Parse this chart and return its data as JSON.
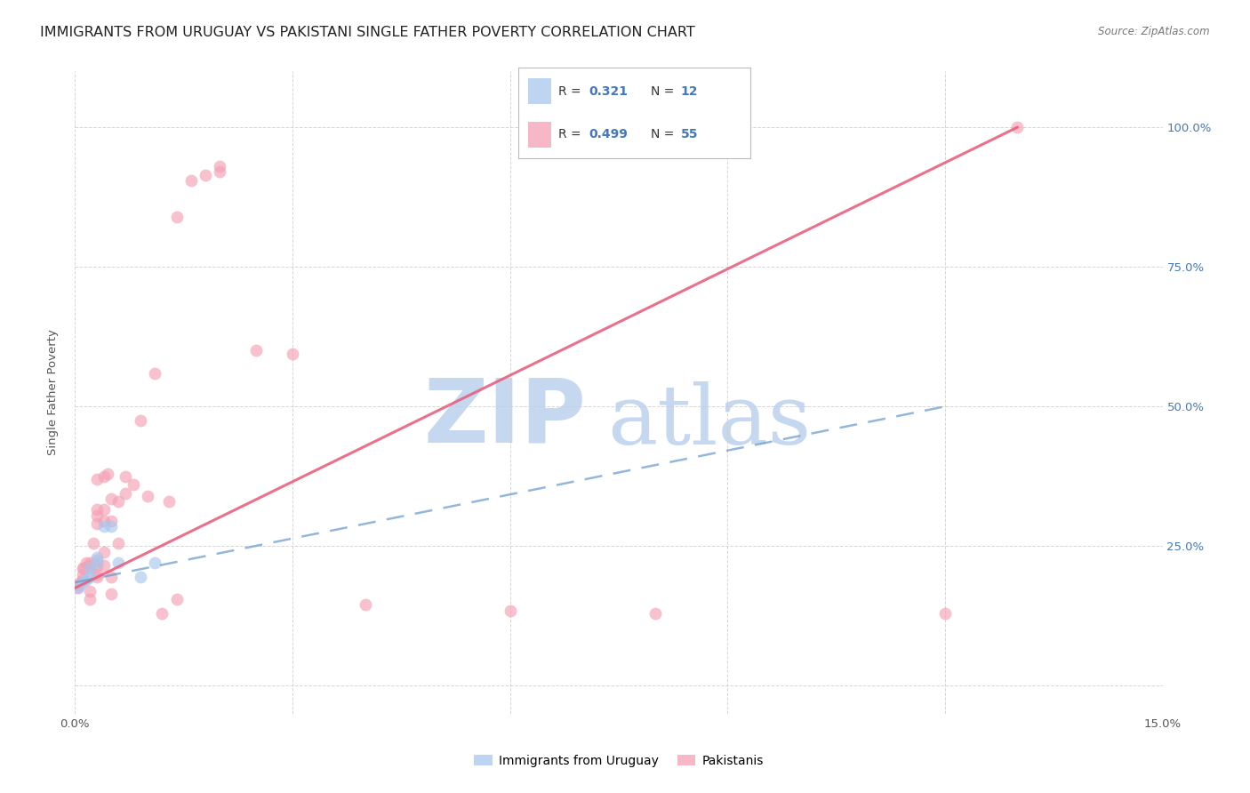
{
  "title": "IMMIGRANTS FROM URUGUAY VS PAKISTANI SINGLE FATHER POVERTY CORRELATION CHART",
  "source": "Source: ZipAtlas.com",
  "ylabel": "Single Father Poverty",
  "legend_blue_r": "R = ",
  "legend_blue_r_val": "0.321",
  "legend_blue_n": "N = ",
  "legend_blue_n_val": "12",
  "legend_pink_r": "R = ",
  "legend_pink_r_val": "0.499",
  "legend_pink_n": "N = ",
  "legend_pink_n_val": "55",
  "legend_label_blue": "Immigrants from Uruguay",
  "legend_label_pink": "Pakistanis",
  "blue_color": "#a8c8ee",
  "pink_color": "#f4a0b5",
  "blue_line_color": "#6699cc",
  "pink_line_color": "#e86080",
  "accent_color": "#4477bb",
  "watermark_zip": "ZIP",
  "watermark_atlas": "atlas",
  "watermark_color_zip": "#c5d8f0",
  "watermark_color_atlas": "#c5d8f0",
  "background_color": "#ffffff",
  "xlim": [
    0.0,
    0.15
  ],
  "ylim": [
    -0.05,
    1.1
  ],
  "blue_points_x": [
    0.0005,
    0.001,
    0.0015,
    0.002,
    0.002,
    0.003,
    0.003,
    0.004,
    0.005,
    0.006,
    0.009,
    0.011
  ],
  "blue_points_y": [
    0.175,
    0.185,
    0.19,
    0.195,
    0.21,
    0.22,
    0.23,
    0.285,
    0.285,
    0.22,
    0.195,
    0.22
  ],
  "pink_points_x": [
    0.0003,
    0.0005,
    0.0007,
    0.001,
    0.001,
    0.001,
    0.0012,
    0.0015,
    0.002,
    0.002,
    0.002,
    0.002,
    0.002,
    0.0025,
    0.003,
    0.003,
    0.003,
    0.003,
    0.003,
    0.003,
    0.003,
    0.003,
    0.004,
    0.004,
    0.004,
    0.004,
    0.004,
    0.0045,
    0.005,
    0.005,
    0.005,
    0.005,
    0.006,
    0.006,
    0.007,
    0.007,
    0.008,
    0.009,
    0.01,
    0.011,
    0.012,
    0.013,
    0.014,
    0.014,
    0.016,
    0.018,
    0.02,
    0.02,
    0.025,
    0.03,
    0.04,
    0.06,
    0.08,
    0.12,
    0.13
  ],
  "pink_points_y": [
    0.175,
    0.18,
    0.185,
    0.19,
    0.2,
    0.21,
    0.21,
    0.22,
    0.155,
    0.17,
    0.21,
    0.215,
    0.22,
    0.255,
    0.195,
    0.2,
    0.215,
    0.225,
    0.29,
    0.305,
    0.315,
    0.37,
    0.215,
    0.24,
    0.295,
    0.315,
    0.375,
    0.38,
    0.165,
    0.195,
    0.295,
    0.335,
    0.255,
    0.33,
    0.345,
    0.375,
    0.36,
    0.475,
    0.34,
    0.56,
    0.13,
    0.33,
    0.84,
    0.155,
    0.905,
    0.915,
    0.92,
    0.93,
    0.6,
    0.595,
    0.145,
    0.135,
    0.13,
    0.13,
    1.0
  ],
  "blue_trendline_x": [
    0.0,
    0.12
  ],
  "blue_trendline_y": [
    0.185,
    0.5
  ],
  "pink_trendline_x": [
    0.0,
    0.13
  ],
  "pink_trendline_y": [
    0.175,
    1.0
  ],
  "marker_size": 100,
  "marker_alpha": 0.65,
  "trendline_alpha": 0.9,
  "grid_color": "#cccccc",
  "title_fontsize": 11.5,
  "axis_label_fontsize": 9.5,
  "legend_fontsize": 10.5,
  "tick_fontsize": 9.5
}
